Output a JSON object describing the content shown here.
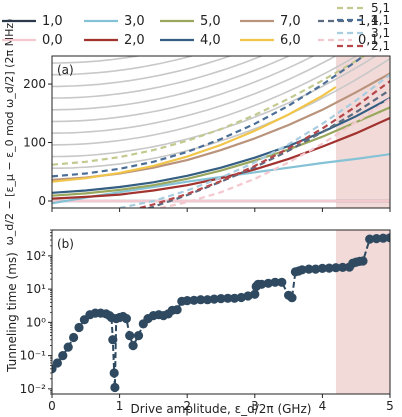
{
  "chart_data": [
    {
      "type": "line",
      "panel_label": "(a)",
      "ylabel": "ω_d/2 − [ε_μ − ε_0 mod ω_d/2] (2π MHz)",
      "xlabel": "",
      "xlim": [
        0,
        5
      ],
      "ylim": [
        -12,
        248
      ],
      "xticks": [
        0,
        1,
        2,
        3,
        4,
        5
      ],
      "yticks": [
        0,
        100,
        200
      ],
      "shaded_region": {
        "x_from": 4.2,
        "x_to": 5.0,
        "color": "#f2dad8"
      },
      "colors": {
        "1,0": "#2b3a4a",
        "0,0": "#f4c8cf",
        "3,0": "#86c2d6",
        "2,0": "#a1322e",
        "5,0": "#9aa85e",
        "4,0": "#355f82",
        "7,0": "#b9937b",
        "6,0": "#f0c54a",
        "1,1": "#5b6b80",
        "0,1": "#f4c8cf",
        "5,1": "#c3c98f",
        "4,1": "#4b6e96",
        "3,1": "#a8cde0",
        "2,1": "#b5474a",
        "background": "#c8c8c8"
      },
      "legend": [
        "1,0",
        "0,0",
        "3,0",
        "2,0",
        "5,0",
        "4,0",
        "7,0",
        "6,0",
        "1,1",
        "0,1",
        "5,1",
        "4,1",
        "3,1",
        "2,1"
      ],
      "background_lines": {
        "color": "#c8c8c8",
        "offsets_at_x0": [
          56,
          76,
          96,
          116,
          136,
          156,
          176,
          196,
          216,
          236
        ],
        "curvature": 7.5
      },
      "series": [
        {
          "name": "1,0",
          "style": "solid",
          "x": [
            0,
            1,
            2,
            3,
            4,
            5
          ],
          "y": [
            0,
            0,
            0,
            0,
            0,
            0
          ]
        },
        {
          "name": "0,0",
          "style": "solid",
          "x": [
            0,
            1,
            2,
            3,
            4,
            5
          ],
          "y": [
            0,
            0,
            0,
            0,
            0,
            0
          ]
        },
        {
          "name": "3,0",
          "style": "solid",
          "x": [
            0,
            0.5,
            1,
            1.5,
            2,
            2.5,
            3,
            3.5,
            4,
            4.5,
            5
          ],
          "y": [
            -4,
            6,
            15,
            24,
            33,
            41,
            49,
            57,
            65,
            72,
            80
          ]
        },
        {
          "name": "2,0",
          "style": "solid",
          "x": [
            0,
            0.5,
            1,
            1.5,
            2,
            2.5,
            3,
            3.5,
            4,
            4.5,
            5
          ],
          "y": [
            4,
            7,
            11,
            18,
            27,
            39,
            54,
            72,
            93,
            116,
            142
          ]
        },
        {
          "name": "5,0",
          "style": "solid",
          "x": [
            0,
            0.5,
            1,
            1.5,
            2,
            2.5,
            3,
            3.5,
            4,
            4.5,
            5
          ],
          "y": [
            9,
            13,
            19,
            27,
            38,
            52,
            69,
            88,
            110,
            135,
            160
          ]
        },
        {
          "name": "4,0",
          "style": "solid",
          "x": [
            0,
            0.5,
            1,
            1.5,
            2,
            2.5,
            3,
            3.5,
            4,
            4.5,
            5
          ],
          "y": [
            14,
            18,
            24,
            32,
            43,
            57,
            74,
            94,
            118,
            145,
            176
          ]
        },
        {
          "name": "7,0",
          "style": "solid",
          "x": [
            0,
            0.5,
            1,
            1.5,
            2,
            2.5,
            3,
            3.5,
            4,
            4.5,
            5
          ],
          "y": [
            36,
            40,
            47,
            57,
            70,
            87,
            107,
            130,
            156,
            186,
            218
          ]
        },
        {
          "name": "6,0",
          "style": "solid",
          "x": [
            0,
            0.5,
            1,
            1.5,
            2,
            2.5,
            3,
            3.5,
            4,
            4.2
          ],
          "y": [
            33,
            39,
            48,
            60,
            76,
            96,
            120,
            148,
            180,
            195
          ]
        },
        {
          "name": "1,1",
          "style": "dashed",
          "x": [
            0,
            0.5,
            1,
            1.5,
            2,
            2.5,
            3,
            3.5,
            4,
            4.5,
            5
          ],
          "y": [
            -60,
            -45,
            -28,
            -10,
            10,
            33,
            58,
            86,
            118,
            152,
            190
          ]
        },
        {
          "name": "0,1",
          "style": "dashed",
          "x": [
            1.6,
            2,
            2.5,
            3,
            3.5,
            4,
            4.5,
            5
          ],
          "y": [
            -12,
            -2,
            15,
            38,
            66,
            98,
            135,
            175
          ]
        },
        {
          "name": "5,1",
          "style": "dashed",
          "x": [
            0,
            0.5,
            1,
            1.5,
            2,
            2.5,
            3,
            3.5,
            4,
            4.5,
            5
          ],
          "y": [
            62,
            67,
            75,
            87,
            103,
            123,
            147,
            175,
            206,
            240,
            275
          ]
        },
        {
          "name": "4,1",
          "style": "dashed",
          "x": [
            0,
            0.5,
            1,
            1.5,
            2,
            2.5,
            3,
            3.5,
            4,
            4.5,
            5
          ],
          "y": [
            42,
            47,
            55,
            67,
            84,
            106,
            132,
            163,
            199,
            239,
            283
          ]
        },
        {
          "name": "3,1",
          "style": "dashed",
          "x": [
            1.0,
            1.5,
            2,
            2.5,
            3,
            3.5,
            4,
            4.5,
            5
          ],
          "y": [
            -12,
            0,
            18,
            40,
            66,
            97,
            132,
            172,
            216
          ]
        },
        {
          "name": "2,1",
          "style": "dashed",
          "x": [
            1.3,
            1.5,
            2,
            2.5,
            3,
            3.5,
            4,
            4.5,
            5
          ],
          "y": [
            -12,
            -6,
            12,
            34,
            60,
            90,
            124,
            162,
            205
          ]
        }
      ]
    },
    {
      "type": "line",
      "panel_label": "(b)",
      "ylabel": "Tunneling time (ms)",
      "xlabel": "Drive amplitude, ε_d/2π (GHz)",
      "xlim": [
        0,
        5
      ],
      "ylim": [
        0.007,
        600
      ],
      "yscale": "log",
      "xticks": [
        0,
        1,
        2,
        3,
        4,
        5
      ],
      "yticks": [
        0.01,
        0.1,
        1,
        10,
        100
      ],
      "ytick_labels": [
        "10⁻²",
        "10⁻¹",
        "10⁰",
        "10¹",
        "10²"
      ],
      "shaded_region": {
        "x_from": 4.2,
        "x_to": 5.0,
        "color": "#f2dad8"
      },
      "series": [
        {
          "name": "",
          "color": "#2f4a60",
          "style": "dashed",
          "markers": true,
          "x": [
            0.0,
            0.08,
            0.16,
            0.24,
            0.32,
            0.4,
            0.48,
            0.56,
            0.64,
            0.72,
            0.8,
            0.85,
            0.88,
            0.9,
            0.92,
            0.93,
            0.95,
            1.0,
            1.05,
            1.1,
            1.15,
            1.2,
            1.28,
            1.35,
            1.42,
            1.5,
            1.58,
            1.65,
            1.72,
            1.78,
            1.85,
            1.92,
            2.0,
            2.1,
            2.2,
            2.3,
            2.4,
            2.5,
            2.6,
            2.7,
            2.8,
            2.9,
            3.0,
            3.02,
            3.05,
            3.1,
            3.2,
            3.3,
            3.4,
            3.5,
            3.55,
            3.6,
            3.65,
            3.7,
            3.8,
            3.9,
            4.0,
            4.1,
            4.2,
            4.3,
            4.4,
            4.45,
            4.5,
            4.55,
            4.6,
            4.7,
            4.8,
            4.9,
            5.0
          ],
          "y": [
            0.04,
            0.06,
            0.1,
            0.18,
            0.35,
            0.7,
            1.2,
            1.7,
            1.9,
            1.9,
            1.8,
            1.6,
            1.4,
            0.3,
            0.03,
            0.011,
            1.3,
            1.4,
            1.5,
            1.3,
            0.4,
            0.2,
            0.4,
            0.9,
            1.3,
            1.6,
            1.7,
            1.6,
            1.8,
            2.3,
            2.4,
            4.3,
            4.5,
            4.6,
            4.8,
            4.8,
            5.0,
            5.2,
            5.3,
            5.3,
            5.6,
            6.2,
            7.0,
            12,
            14,
            14,
            15,
            16,
            16,
            6.5,
            5.5,
            33,
            35,
            38,
            40,
            40,
            42,
            43,
            44,
            45,
            46,
            60,
            65,
            68,
            70,
            320,
            330,
            340,
            350
          ]
        }
      ]
    }
  ]
}
